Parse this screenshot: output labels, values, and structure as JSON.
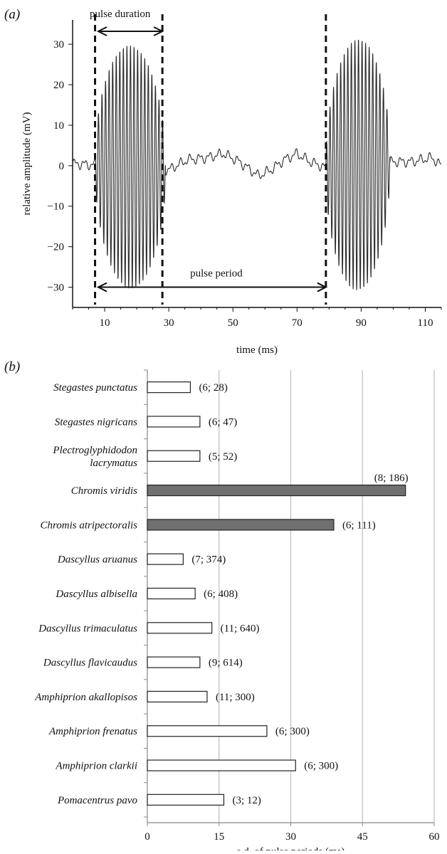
{
  "chart_data": [
    {
      "type": "line",
      "panel_label": "(a)",
      "xlabel": "time (ms)",
      "ylabel": "relative amplitude (mV)",
      "xlim": [
        0,
        115
      ],
      "ylim": [
        -35,
        36
      ],
      "xticks": [
        10,
        30,
        50,
        70,
        90,
        110
      ],
      "yticks": [
        -30,
        -20,
        -10,
        0,
        10,
        20,
        30
      ],
      "grid": false,
      "series": [
        {
          "waveform": "sound pulses",
          "color": "#2a2a2a",
          "pulses": [
            {
              "start": 8,
              "end": 28,
              "peak_amplitude": 30,
              "freq_per_ms": 0.9
            },
            {
              "start": 80,
              "end": 98,
              "peak_amplitude": 31,
              "freq_per_ms": 0.9
            }
          ],
          "baseline": [
            [
              0,
              0.5
            ],
            [
              12,
              0
            ],
            [
              30,
              -1
            ],
            [
              36,
              1.5
            ],
            [
              42,
              2
            ],
            [
              47,
              3
            ],
            [
              52,
              1
            ],
            [
              58,
              -2.5
            ],
            [
              62,
              -1
            ],
            [
              66,
              1.5
            ],
            [
              70,
              3
            ],
            [
              74,
              1
            ],
            [
              79,
              -0.5
            ],
            [
              100,
              1
            ],
            [
              106,
              1
            ],
            [
              112,
              2
            ],
            [
              115,
              0
            ]
          ]
        }
      ],
      "markers": {
        "dashed_lines_x": [
          7,
          28,
          79
        ],
        "pulse_duration": {
          "label": "pulse duration",
          "from": 8,
          "to": 28,
          "y": 35.5
        },
        "pulse_period": {
          "label": "pulse period",
          "from": 8,
          "to": 79,
          "y": -30
        }
      }
    },
    {
      "type": "bar",
      "orientation": "horizontal",
      "panel_label": "(b)",
      "xlabel": "s.d. of pulse periods (ms)",
      "xlim": [
        0,
        60
      ],
      "xticks": [
        0,
        15,
        30,
        45,
        60
      ],
      "grid": true,
      "colors": {
        "open": "#ffffff",
        "filled": "#707070",
        "edge": "#222222",
        "grid": "#bdbdbd"
      },
      "categories": [
        {
          "name": [
            "Stegastes punctatus"
          ],
          "value": 9,
          "label": "(6; 28)",
          "filled": false
        },
        {
          "name": [
            "Stegastes nigricans"
          ],
          "value": 11,
          "label": "(6; 47)",
          "filled": false
        },
        {
          "name": [
            "Plectroglyphidodon",
            "lacrymatus"
          ],
          "value": 11,
          "label": "(5; 52)",
          "filled": false
        },
        {
          "name": [
            "Chromis viridis"
          ],
          "value": 54,
          "label": "(8; 186)",
          "filled": true
        },
        {
          "name": [
            "Chromis atripectoralis"
          ],
          "value": 39,
          "label": "(6; 111)",
          "filled": true
        },
        {
          "name": [
            "Dascyllus aruanus"
          ],
          "value": 7.5,
          "label": "(7; 374)",
          "filled": false
        },
        {
          "name": [
            "Dascyllus albisella"
          ],
          "value": 10,
          "label": "(6; 408)",
          "filled": false
        },
        {
          "name": [
            "Dascyllus trimaculatus"
          ],
          "value": 13.5,
          "label": "(11; 640)",
          "filled": false
        },
        {
          "name": [
            "Dascyllus flavicaudus"
          ],
          "value": 11,
          "label": "(9; 614)",
          "filled": false
        },
        {
          "name": [
            "Amphiprion akallopisos"
          ],
          "value": 12.5,
          "label": "(11; 300)",
          "filled": false
        },
        {
          "name": [
            "Amphiprion frenatus"
          ],
          "value": 25,
          "label": "(6; 300)",
          "filled": false
        },
        {
          "name": [
            "Amphiprion clarkii"
          ],
          "value": 31,
          "label": "(6; 300)",
          "filled": false
        },
        {
          "name": [
            "Pomacentrus pavo"
          ],
          "value": 16,
          "label": "(3; 12)",
          "filled": false
        }
      ]
    }
  ]
}
